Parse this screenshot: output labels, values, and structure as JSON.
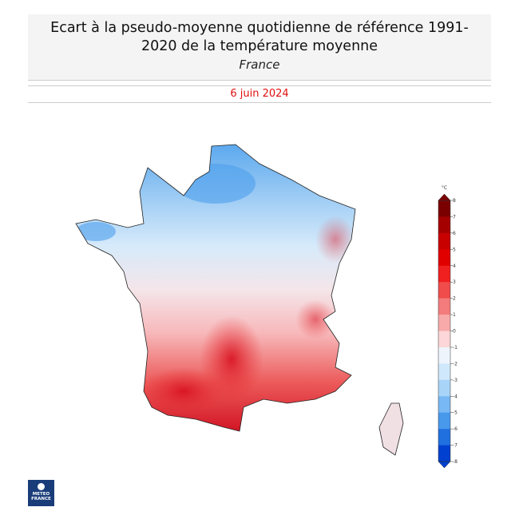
{
  "header": {
    "title": "Ecart à la pseudo-moyenne quotidienne de référence 1991-2020 de la température moyenne",
    "subtitle": "France",
    "date": "6 juin 2024"
  },
  "colorbar": {
    "unit": "°C",
    "lim": [
      -8,
      8
    ],
    "ticks": [
      8,
      7,
      6,
      5,
      4,
      3,
      2,
      1,
      0,
      -1,
      -2,
      -3,
      -4,
      -5,
      -6,
      -7,
      -8
    ],
    "colors": [
      "#7a0000",
      "#a50000",
      "#c80000",
      "#e00000",
      "#f02020",
      "#f04c4c",
      "#f47c7c",
      "#f8aaaa",
      "#fcd6d8",
      "#eef4fc",
      "#d0e8fc",
      "#a8d4f8",
      "#78b8f4",
      "#4898ec",
      "#2070e0",
      "#0040d0"
    ]
  },
  "logo": {
    "line1": "METEO",
    "line2": "FRANCE"
  }
}
